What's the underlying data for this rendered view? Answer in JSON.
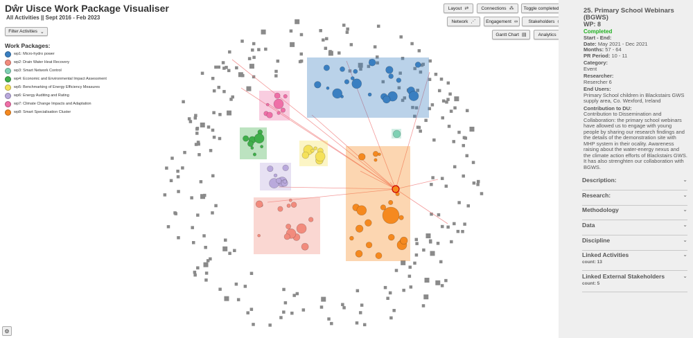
{
  "header": {
    "title": "Dŵr Uisce Work Package Visualiser",
    "subtitle": "All Activities || Sept 2016 - Feb 2023"
  },
  "filter_button": "Filter Activities",
  "legend": {
    "title": "Work Packages:",
    "items": [
      {
        "label": "wp1: Micro-hydro power",
        "color": "#3a7fc1"
      },
      {
        "label": "wp2: Drain Water Heat Recovery",
        "color": "#f28b7d"
      },
      {
        "label": "wp3: Smart Network Control",
        "color": "#7fd1b4"
      },
      {
        "label": "wp4: Economic and Environmental Impact Assessment",
        "color": "#3fae4a"
      },
      {
        "label": "wp5: Benchmarking of Energy Efficiency Measures",
        "color": "#f5e15a"
      },
      {
        "label": "wp6: Energy Auditing and Rating",
        "color": "#b9a9dc"
      },
      {
        "label": "wp7: Climate Change Impacts and Adaptation",
        "color": "#ef6fa7"
      },
      {
        "label": "wp8: Smart Specialisation Cluster",
        "color": "#f5891f"
      }
    ]
  },
  "toolbar": {
    "layout": "Layout",
    "connections": "Connections",
    "toggle_completed": "Toggle completed",
    "network": "Network",
    "engagement": "Engagement",
    "stakeholders": "Stakeholders",
    "gantt": "Gantt Chart",
    "analytics": "Analytics"
  },
  "icons": {
    "layout": "swap-icon",
    "connections": "connections-icon",
    "toggle": "chevron-down-icon",
    "network": "network-icon",
    "engagement": "link-icon",
    "stakeholders": "eye-icon",
    "gantt": "document-icon",
    "analytics": "analytics-icon",
    "settings": "gear-icon"
  },
  "panel": {
    "title": "25. Primary School Webinars (BGWS)",
    "wp": "WP: 8",
    "status": "Completed",
    "start_end_label": "Start - End:",
    "date_label": "Date:",
    "date_value": "May 2021 - Dec 2021",
    "months_label": "Months:",
    "months_value": "57 - 64",
    "pr_label": "PR Period:",
    "pr_value": "10 - 11",
    "category_label": "Category:",
    "category_value": "Event",
    "researcher_label": "Researcher:",
    "researcher_value": "Resercher 6",
    "end_users_label": "End Users:",
    "end_users_value": "Primary School children in Blackstairs GWS supply area, Co. Wexford, Ireland",
    "contribution_label": "Contribution to DU:",
    "contribution_value": "Contribution to Dissemination and Collaboration: the primary school webinars have allowed us to engage with young people by sharing our research findings and the details of the demonstration site with MHP system in their ocality. Awareness raising about the water-energy nexus and the climate action efforts of Blackstairs GWS. It has also strenghten our collaboration with BGWS.",
    "sections": [
      {
        "label": "Description:"
      },
      {
        "label": "Research:"
      },
      {
        "label": "Methodology"
      },
      {
        "label": "Data"
      },
      {
        "label": "Discipline"
      },
      {
        "label": "Linked Activities",
        "count": "count: 13"
      },
      {
        "label": "Linked External Stakeholders",
        "count": "count: 5"
      }
    ]
  }
}
